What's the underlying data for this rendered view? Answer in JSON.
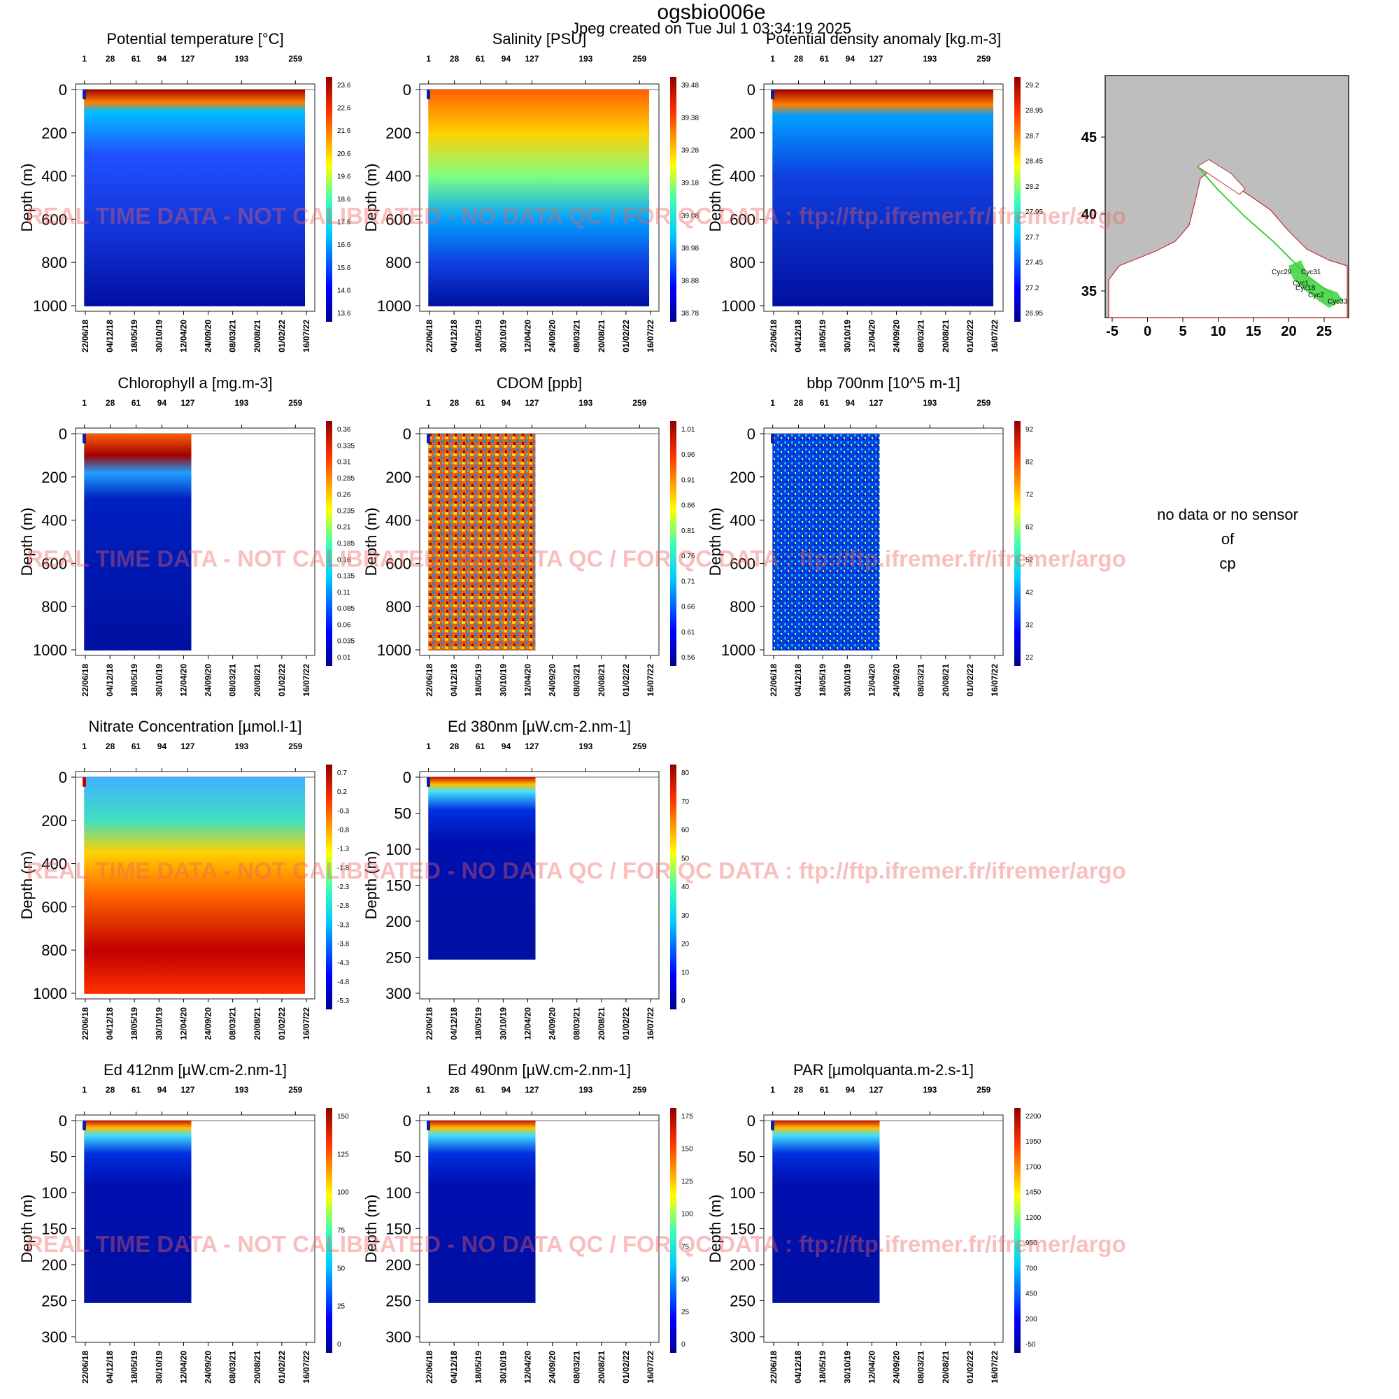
{
  "header": {
    "title": "ogsbio006e",
    "subtitle": "Jpeg created on  Tue Jul  1 03:34:19 2025"
  },
  "common": {
    "ylabel": "Depth (m)",
    "top_ticks": [
      "1",
      "28",
      "61",
      "94",
      "127",
      "193",
      "259"
    ],
    "date_ticks": [
      "22/06/18",
      "04/12/18",
      "18/05/19",
      "30/10/19",
      "12/04/20",
      "24/09/20",
      "08/03/21",
      "20/08/21",
      "01/02/22",
      "16/07/22"
    ],
    "watermark": "REAL TIME DATA - NOT CALIBRATED - NO DATA QC  /  FOR QC DATA : ftp://ftp.ifremer.fr/ifremer/argo",
    "colors": {
      "low": "#0000a8",
      "mid": "#2fe090",
      "high": "#b00000",
      "track": "#3cd23c",
      "frame": "#555555"
    }
  },
  "nodata_panel": {
    "line1": "no data or no sensor",
    "line2": "of",
    "line3": "cp"
  },
  "map": {
    "x_ticks": [
      "-5",
      "0",
      "5",
      "10",
      "15",
      "20",
      "25"
    ],
    "y_ticks": [
      "45",
      "40",
      "35"
    ],
    "labels": [
      "Cyc29",
      "Cyc31",
      "Cyc1",
      "Cyc18",
      "Cyc33",
      "Cyc2"
    ]
  },
  "chart_data": [
    {
      "type": "heatmap",
      "title": "Potential temperature [°C]",
      "ylabel": "Depth (m)",
      "yticks": [
        "0",
        "200",
        "400",
        "600",
        "800",
        "1000"
      ],
      "ylim": [
        1000,
        0
      ],
      "colorbar": [
        "23.6",
        "22.6",
        "21.6",
        "20.6",
        "19.6",
        "18.6",
        "17.6",
        "16.6",
        "15.6",
        "14.6",
        "13.6"
      ],
      "data_extent": [
        0.1,
        1.0
      ]
    },
    {
      "type": "heatmap",
      "title": "Salinity [PSU]",
      "ylabel": "Depth (m)",
      "yticks": [
        "0",
        "200",
        "400",
        "600",
        "800",
        "1000"
      ],
      "ylim": [
        1000,
        0
      ],
      "colorbar": [
        "39.48",
        "39.38",
        "39.28",
        "39.18",
        "39.08",
        "38.98",
        "38.88",
        "38.78"
      ],
      "data_extent": [
        0.1,
        1.0
      ]
    },
    {
      "type": "heatmap",
      "title": "Potential density anomaly [kg.m-3]",
      "ylabel": "Depth (m)",
      "yticks": [
        "0",
        "200",
        "400",
        "600",
        "800",
        "1000"
      ],
      "ylim": [
        1000,
        0
      ],
      "colorbar": [
        "29.2",
        "28.95",
        "28.7",
        "28.45",
        "28.2",
        "27.95",
        "27.7",
        "27.45",
        "27.2",
        "26.95"
      ],
      "data_extent": [
        0.1,
        1.0
      ]
    },
    {
      "type": "heatmap",
      "title": "Chlorophyll a [mg.m-3]",
      "ylabel": "Depth (m)",
      "yticks": [
        "0",
        "200",
        "400",
        "600",
        "800",
        "1000"
      ],
      "ylim": [
        1000,
        0
      ],
      "colorbar": [
        "0.36",
        "0.335",
        "0.31",
        "0.285",
        "0.26",
        "0.235",
        "0.21",
        "0.185",
        "0.16",
        "0.135",
        "0.11",
        "0.085",
        "0.06",
        "0.035",
        "0.01"
      ],
      "data_extent": [
        0.1,
        0.51
      ]
    },
    {
      "type": "heatmap",
      "title": "CDOM  [ppb]",
      "ylabel": "Depth (m)",
      "yticks": [
        "0",
        "200",
        "400",
        "600",
        "800",
        "1000"
      ],
      "ylim": [
        1000,
        0
      ],
      "colorbar": [
        "1.01",
        "0.96",
        "0.91",
        "0.86",
        "0.81",
        "0.76",
        "0.71",
        "0.66",
        "0.61",
        "0.56"
      ],
      "data_extent": [
        0.1,
        0.51
      ]
    },
    {
      "type": "heatmap",
      "title": "bbp 700nm [10^5 m-1]",
      "ylabel": "Depth (m)",
      "yticks": [
        "0",
        "200",
        "400",
        "600",
        "800",
        "1000"
      ],
      "ylim": [
        1000,
        0
      ],
      "colorbar": [
        "92",
        "82",
        "72",
        "62",
        "52",
        "42",
        "32",
        "22"
      ],
      "data_extent": [
        0.1,
        0.51
      ]
    },
    {
      "type": "heatmap",
      "title": "Nitrate Concentration [µmol.l-1]",
      "ylabel": "Depth (m)",
      "yticks": [
        "0",
        "200",
        "400",
        "600",
        "800",
        "1000"
      ],
      "ylim": [
        1000,
        0
      ],
      "colorbar": [
        "0.7",
        "0.2",
        "-0.3",
        "-0.8",
        "-1.3",
        "-1.8",
        "-2.3",
        "-2.8",
        "-3.3",
        "-3.8",
        "-4.3",
        "-4.8",
        "-5.3"
      ],
      "data_extent": [
        0.1,
        1.0
      ]
    },
    {
      "type": "heatmap",
      "title": "Ed 380nm [µW.cm-2.nm-1]",
      "ylabel": "Depth (m)",
      "yticks": [
        "0",
        "50",
        "100",
        "150",
        "200",
        "250",
        "300"
      ],
      "ylim": [
        300,
        0
      ],
      "colorbar": [
        "80",
        "70",
        "60",
        "50",
        "40",
        "30",
        "20",
        "10",
        "0"
      ],
      "data_extent": [
        0.1,
        0.51
      ]
    },
    {
      "type": "heatmap",
      "title": "Ed 412nm [µW.cm-2.nm-1]",
      "ylabel": "Depth (m)",
      "yticks": [
        "0",
        "50",
        "100",
        "150",
        "200",
        "250",
        "300"
      ],
      "ylim": [
        300,
        0
      ],
      "colorbar": [
        "150",
        "125",
        "100",
        "75",
        "50",
        "25",
        "0"
      ],
      "data_extent": [
        0.1,
        0.51
      ]
    },
    {
      "type": "heatmap",
      "title": "Ed 490nm [µW.cm-2.nm-1]",
      "ylabel": "Depth (m)",
      "yticks": [
        "0",
        "50",
        "100",
        "150",
        "200",
        "250",
        "300"
      ],
      "ylim": [
        300,
        0
      ],
      "colorbar": [
        "175",
        "150",
        "125",
        "100",
        "75",
        "50",
        "25",
        "0"
      ],
      "data_extent": [
        0.1,
        0.51
      ]
    },
    {
      "type": "heatmap",
      "title": "PAR [µmolquanta.m-2.s-1]",
      "ylabel": "Depth (m)",
      "yticks": [
        "0",
        "50",
        "100",
        "150",
        "200",
        "250",
        "300"
      ],
      "ylim": [
        300,
        0
      ],
      "colorbar": [
        "2200",
        "1950",
        "1700",
        "1450",
        "1200",
        "950",
        "700",
        "450",
        "200",
        "-50"
      ],
      "data_extent": [
        0.1,
        0.51
      ]
    }
  ]
}
